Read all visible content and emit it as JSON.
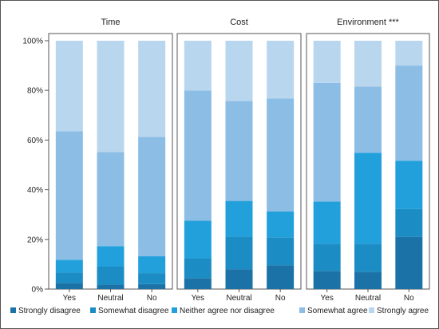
{
  "chart_data": {
    "type": "bar",
    "stacked": true,
    "normalized": true,
    "categories": [
      "Yes",
      "Neutral",
      "No"
    ],
    "ylim": [
      0,
      100
    ],
    "yticks": [
      "0%",
      "20%",
      "40%",
      "60%",
      "80%",
      "100%"
    ],
    "grid": false,
    "legend_position": "bottom",
    "legend": [
      {
        "name": "Strongly disagree",
        "color": "#1b72a6"
      },
      {
        "name": "Somewhat disagree",
        "color": "#1b8cc4"
      },
      {
        "name": "Neither agree nor disagree",
        "color": "#22a0dc"
      },
      {
        "name": "Somewhat agree",
        "color": "#8cbde4"
      },
      {
        "name": "Strongly agree",
        "color": "#b9d6ef"
      }
    ],
    "panels": [
      {
        "title": "Time",
        "series": [
          {
            "name": "Strongly disagree",
            "values": [
              2.5,
              1.8,
              2.0
            ]
          },
          {
            "name": "Somewhat disagree",
            "values": [
              4.2,
              7.2,
              4.4
            ]
          },
          {
            "name": "Neither agree nor disagree",
            "values": [
              5.1,
              8.3,
              6.8
            ]
          },
          {
            "name": "Somewhat agree",
            "values": [
              51.8,
              37.9,
              48.1
            ]
          },
          {
            "name": "Strongly agree",
            "values": [
              36.4,
              44.8,
              38.7
            ]
          }
        ]
      },
      {
        "title": "Cost",
        "series": [
          {
            "name": "Strongly disagree",
            "values": [
              4.4,
              8.0,
              9.6
            ]
          },
          {
            "name": "Somewhat disagree",
            "values": [
              8.0,
              13.1,
              11.2
            ]
          },
          {
            "name": "Neither agree nor disagree",
            "values": [
              15.1,
              14.4,
              10.5
            ]
          },
          {
            "name": "Somewhat agree",
            "values": [
              52.4,
              40.2,
              45.4
            ]
          },
          {
            "name": "Strongly agree",
            "values": [
              20.1,
              24.3,
              23.3
            ]
          }
        ]
      },
      {
        "title": "Environment ***",
        "series": [
          {
            "name": "Strongly disagree",
            "values": [
              7.3,
              7.0,
              21.0
            ]
          },
          {
            "name": "Somewhat disagree",
            "values": [
              10.9,
              11.2,
              11.2
            ]
          },
          {
            "name": "Neither agree nor disagree",
            "values": [
              17.0,
              36.7,
              19.5
            ]
          },
          {
            "name": "Somewhat agree",
            "values": [
              47.8,
              26.6,
              38.3
            ]
          },
          {
            "name": "Strongly agree",
            "values": [
              17.0,
              18.5,
              10.0
            ]
          }
        ]
      }
    ]
  }
}
